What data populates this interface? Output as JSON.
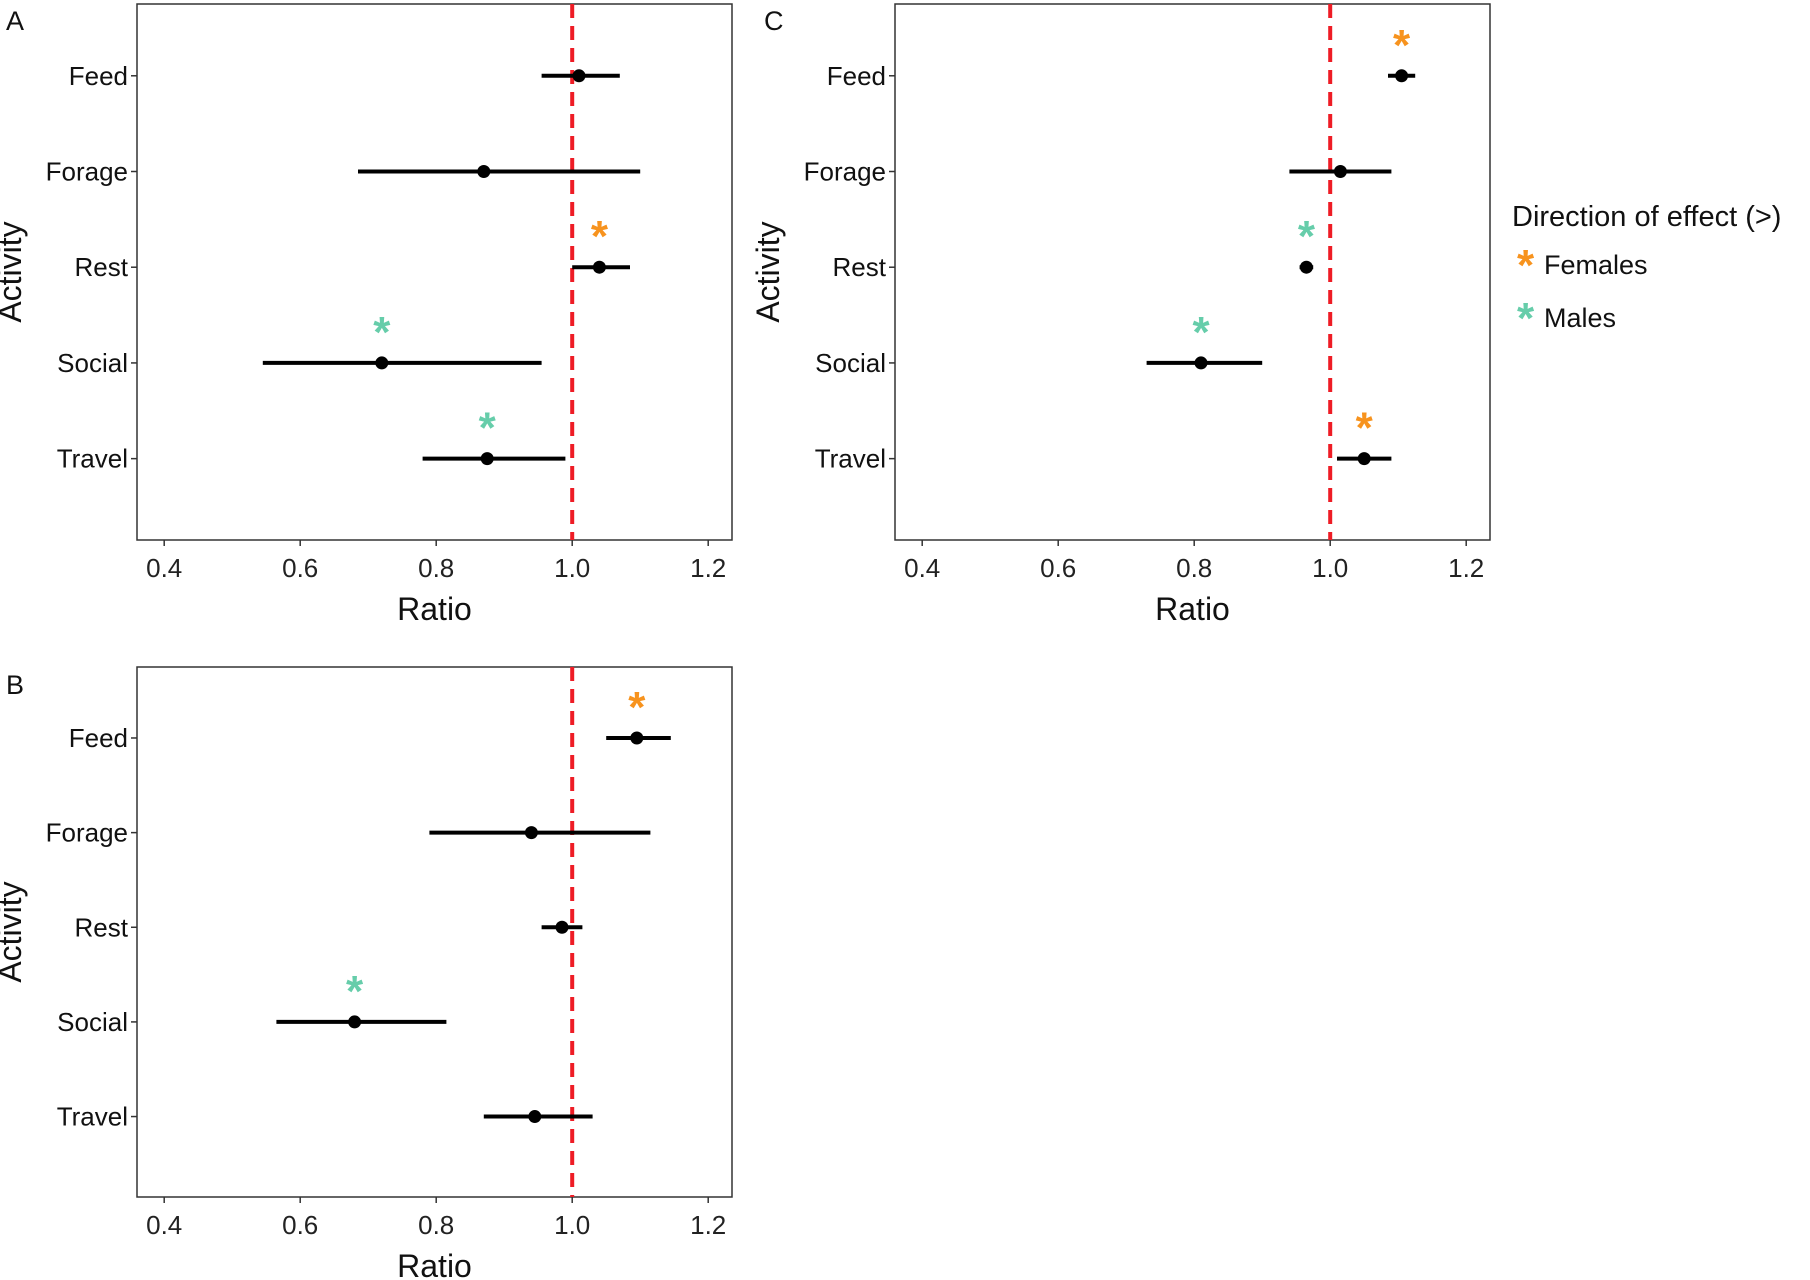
{
  "legend": {
    "title": "Direction of effect (>)",
    "items": [
      {
        "label": "Females",
        "color": "#F7931E"
      },
      {
        "label": "Males",
        "color": "#66CDAA"
      }
    ],
    "symbol": "*",
    "placement": "right"
  },
  "colors": {
    "reference_line": "#EE1C25",
    "points": "#000000",
    "axis_frame": "#333333"
  },
  "chart_data": [
    {
      "panel": "A",
      "type": "scatter",
      "xlabel": "Ratio",
      "ylabel": "Activity",
      "xlim": [
        0.36,
        1.235
      ],
      "xticks": [
        0.4,
        0.6,
        0.8,
        1.0,
        1.2
      ],
      "xtick_labels": [
        "0.4",
        "0.6",
        "0.8",
        "1.0",
        "1.2"
      ],
      "reference_line": 1.0,
      "grid": false,
      "categories": [
        "Feed",
        "Forage",
        "Rest",
        "Social",
        "Travel"
      ],
      "points": [
        {
          "category": "Feed",
          "estimate": 1.01,
          "lower": 0.955,
          "upper": 1.07,
          "sig": null
        },
        {
          "category": "Forage",
          "estimate": 0.87,
          "lower": 0.685,
          "upper": 1.1,
          "sig": null
        },
        {
          "category": "Rest",
          "estimate": 1.04,
          "lower": 1.0,
          "upper": 1.085,
          "sig": "Females"
        },
        {
          "category": "Social",
          "estimate": 0.72,
          "lower": 0.545,
          "upper": 0.955,
          "sig": "Males"
        },
        {
          "category": "Travel",
          "estimate": 0.875,
          "lower": 0.78,
          "upper": 0.99,
          "sig": "Males"
        }
      ]
    },
    {
      "panel": "B",
      "type": "scatter",
      "xlabel": "Ratio",
      "ylabel": "Activity",
      "xlim": [
        0.36,
        1.235
      ],
      "xticks": [
        0.4,
        0.6,
        0.8,
        1.0,
        1.2
      ],
      "xtick_labels": [
        "0.4",
        "0.6",
        "0.8",
        "1.0",
        "1.2"
      ],
      "reference_line": 1.0,
      "grid": false,
      "categories": [
        "Feed",
        "Forage",
        "Rest",
        "Social",
        "Travel"
      ],
      "points": [
        {
          "category": "Feed",
          "estimate": 1.095,
          "lower": 1.05,
          "upper": 1.145,
          "sig": "Females"
        },
        {
          "category": "Forage",
          "estimate": 0.94,
          "lower": 0.79,
          "upper": 1.115,
          "sig": null
        },
        {
          "category": "Rest",
          "estimate": 0.985,
          "lower": 0.955,
          "upper": 1.015,
          "sig": null
        },
        {
          "category": "Social",
          "estimate": 0.68,
          "lower": 0.565,
          "upper": 0.815,
          "sig": "Males"
        },
        {
          "category": "Travel",
          "estimate": 0.945,
          "lower": 0.87,
          "upper": 1.03,
          "sig": null
        }
      ]
    },
    {
      "panel": "C",
      "type": "scatter",
      "xlabel": "Ratio",
      "ylabel": "Activity",
      "xlim": [
        0.36,
        1.235
      ],
      "xticks": [
        0.4,
        0.6,
        0.8,
        1.0,
        1.2
      ],
      "xtick_labels": [
        "0.4",
        "0.6",
        "0.8",
        "1.0",
        "1.2"
      ],
      "reference_line": 1.0,
      "grid": false,
      "categories": [
        "Feed",
        "Forage",
        "Rest",
        "Social",
        "Travel"
      ],
      "points": [
        {
          "category": "Feed",
          "estimate": 1.105,
          "lower": 1.085,
          "upper": 1.125,
          "sig": "Females"
        },
        {
          "category": "Forage",
          "estimate": 1.015,
          "lower": 0.94,
          "upper": 1.09,
          "sig": null
        },
        {
          "category": "Rest",
          "estimate": 0.965,
          "lower": 0.955,
          "upper": 0.975,
          "sig": "Males"
        },
        {
          "category": "Social",
          "estimate": 0.81,
          "lower": 0.73,
          "upper": 0.9,
          "sig": "Males"
        },
        {
          "category": "Travel",
          "estimate": 1.05,
          "lower": 1.01,
          "upper": 1.09,
          "sig": "Females"
        }
      ]
    }
  ]
}
